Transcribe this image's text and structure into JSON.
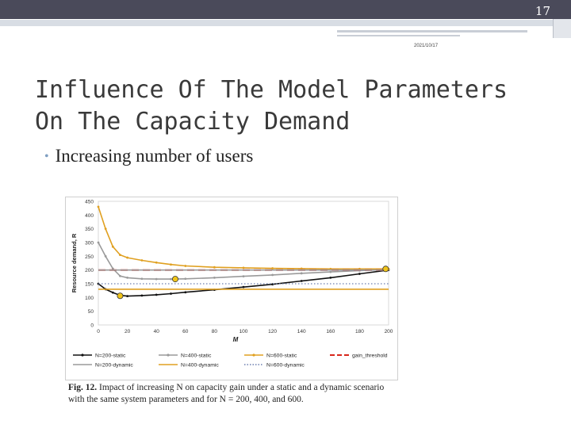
{
  "slide": {
    "number": "17",
    "date": "2021/10/17"
  },
  "title": "Influence Of The Model Parameters On The Capacity Demand",
  "bullet": "Increasing number of users",
  "caption": {
    "label": "Fig. 12.",
    "text": "Impact of increasing N on capacity gain under a static and a dynamic scenario with the same system parameters and for N = 200, 400, and 600."
  },
  "colors": {
    "n200": "#111111",
    "n400": "#9a9a9a",
    "n600": "#e0a020",
    "threshold": "#d8261b",
    "marker": "#f0c419"
  },
  "chart_data": {
    "type": "line",
    "xlabel": "M",
    "ylabel": "Resource demand, R",
    "xlim": [
      0,
      200
    ],
    "ylim": [
      0,
      450
    ],
    "xticks": [
      0,
      20,
      40,
      60,
      80,
      100,
      120,
      140,
      160,
      180,
      200
    ],
    "yticks": [
      0,
      50,
      100,
      150,
      200,
      250,
      300,
      350,
      400,
      450
    ],
    "grid": false,
    "legend_position": "bottom",
    "series": [
      {
        "name": "N=200-static",
        "style": "solid-dot",
        "color": "#111111",
        "x": [
          0,
          5,
          10,
          15,
          20,
          30,
          40,
          50,
          60,
          80,
          100,
          120,
          140,
          160,
          180,
          200
        ],
        "y": [
          150,
          130,
          118,
          108,
          105,
          107,
          110,
          114,
          119,
          128,
          138,
          148,
          160,
          172,
          186,
          200
        ]
      },
      {
        "name": "N=400-static",
        "style": "solid-dot",
        "color": "#9a9a9a",
        "x": [
          0,
          5,
          10,
          15,
          20,
          30,
          40,
          50,
          60,
          80,
          100,
          120,
          140,
          160,
          180,
          200
        ],
        "y": [
          300,
          250,
          205,
          178,
          172,
          168,
          167,
          167,
          168,
          172,
          177,
          182,
          188,
          193,
          198,
          202
        ]
      },
      {
        "name": "N=600-static",
        "style": "solid-dot",
        "color": "#e0a020",
        "x": [
          0,
          5,
          10,
          15,
          20,
          30,
          40,
          50,
          60,
          80,
          100,
          120,
          140,
          160,
          180,
          200
        ],
        "y": [
          430,
          350,
          285,
          255,
          245,
          235,
          227,
          220,
          215,
          210,
          208,
          206,
          205,
          204,
          204,
          204
        ]
      },
      {
        "name": "gain_threshold",
        "style": "dashed",
        "color": "#d8261b",
        "x": [
          0,
          200
        ],
        "y": [
          200,
          200
        ]
      },
      {
        "name": "N=200-dynamic",
        "style": "solid",
        "color": "#9a9a9a",
        "x": [
          0,
          200
        ],
        "y": [
          200,
          200
        ]
      },
      {
        "name": "N=400-dynamic",
        "style": "solid",
        "color": "#e0a020",
        "x": [
          0,
          200
        ],
        "y": [
          130,
          130
        ]
      },
      {
        "name": "N=600-dynamic",
        "style": "dotted",
        "color": "#6c7fb0",
        "x": [
          0,
          200
        ],
        "y": [
          150,
          150
        ]
      }
    ],
    "markers": [
      {
        "x": 15,
        "y": 106
      },
      {
        "x": 53,
        "y": 167
      },
      {
        "x": 198,
        "y": 204
      }
    ],
    "legend": [
      [
        "N=200-static",
        "N=400-static",
        "N=600-static",
        "gain_threshold"
      ],
      [
        "N=200-dynamic",
        "N=400-dynamic",
        "N=600-dynamic"
      ]
    ]
  }
}
